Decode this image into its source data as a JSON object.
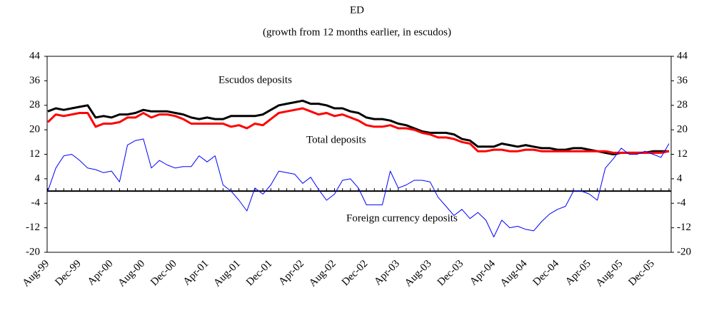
{
  "chart_data": {
    "type": "line",
    "title": "ED",
    "subtitle": "(growth from 12 months earlier, in escudos)",
    "categories": [
      "Aug-99",
      null,
      null,
      null,
      "Dec-99",
      null,
      null,
      null,
      "Apr-00",
      null,
      null,
      null,
      "Aug-00",
      null,
      null,
      null,
      "Dec-00",
      null,
      null,
      null,
      "Apr-01",
      null,
      null,
      null,
      "Aug-01",
      null,
      null,
      null,
      "Dec-01",
      null,
      null,
      null,
      "Apr-02",
      null,
      null,
      null,
      "Aug-02",
      null,
      null,
      null,
      "Dec-02",
      null,
      null,
      null,
      "Apr-03",
      null,
      null,
      null,
      "Aug-03",
      null,
      null,
      null,
      "Dec-03",
      null,
      null,
      null,
      "Apr-04",
      null,
      null,
      null,
      "Aug-04",
      null,
      null,
      null,
      "Dec-04",
      null,
      null,
      null,
      "Apr-05",
      null,
      null,
      null,
      "Aug-05",
      null,
      null,
      null,
      "Dec-05",
      null,
      null
    ],
    "series": [
      {
        "name": "Escudos deposits",
        "color": "#000000",
        "values": [
          26,
          27,
          26.5,
          27,
          27.5,
          28,
          24,
          24.5,
          24,
          25,
          25,
          25.5,
          26.5,
          26,
          26,
          26,
          25.5,
          25,
          24,
          23.5,
          24,
          23.5,
          23.5,
          24.5,
          24.5,
          24.5,
          24.5,
          25,
          26.5,
          28,
          28.5,
          29,
          29.5,
          28.5,
          28.5,
          28,
          27,
          27,
          26,
          25.5,
          24,
          23.5,
          23.5,
          23,
          22,
          21.5,
          20.5,
          19.5,
          19,
          19,
          19,
          18.5,
          17,
          16.5,
          14.5,
          14.5,
          14.5,
          15.5,
          15,
          14.5,
          15,
          14.5,
          14,
          14,
          13.5,
          13.5,
          14,
          14,
          13.5,
          13,
          12.5,
          12,
          12.5,
          12.5,
          12.5,
          12.5,
          13,
          13,
          13
        ]
      },
      {
        "name": "Total deposits",
        "color": "#ff0000",
        "values": [
          22.5,
          25,
          24.5,
          25,
          25.5,
          25.5,
          21,
          22,
          22,
          22.5,
          24,
          24,
          25.5,
          24,
          25,
          25,
          24.5,
          23.5,
          22,
          22,
          22,
          22,
          22,
          21,
          21.5,
          20.5,
          22,
          21.5,
          23.5,
          25.5,
          26,
          26.5,
          27,
          26,
          25,
          25.5,
          24.5,
          25,
          24,
          23,
          21.5,
          21,
          21,
          21.5,
          20.5,
          20.5,
          20,
          19,
          18.5,
          17.5,
          17.5,
          17,
          16,
          15.5,
          13,
          13,
          13.5,
          13.5,
          13,
          13,
          13.5,
          13.5,
          13,
          13,
          13,
          13,
          13,
          13,
          13,
          13,
          13,
          12.5,
          12.5,
          12.5,
          12.5,
          12.5,
          12.5,
          12.5,
          13
        ]
      },
      {
        "name": "Foreign currency deposits",
        "color": "#0000ff",
        "values": [
          0,
          7.5,
          11.5,
          12,
          10,
          7.5,
          7,
          6,
          6.5,
          3,
          15,
          16.5,
          17,
          7.5,
          10,
          8.5,
          7.5,
          8,
          8,
          11.5,
          9.5,
          11.5,
          2,
          0,
          -3,
          -6.5,
          1,
          -1,
          2,
          6.5,
          6,
          5.5,
          2.5,
          4.5,
          0.5,
          -3,
          -1,
          3.5,
          4,
          1,
          -4.5,
          -4.5,
          -4.5,
          6.5,
          1,
          2,
          3.5,
          3.5,
          3,
          -2,
          -5,
          -8,
          -6,
          -9,
          -7,
          -9.5,
          -15,
          -9.5,
          -12,
          -11.5,
          -12.5,
          -13,
          -10,
          -7.5,
          -6,
          -5,
          0,
          0,
          -1,
          -3,
          7.5,
          10.5,
          14,
          12,
          12,
          13,
          12,
          11,
          15.5
        ]
      }
    ],
    "ylim": [
      -20,
      44
    ],
    "yticks": [
      -20,
      -12,
      -4,
      4,
      12,
      20,
      28,
      36,
      44
    ],
    "y2lim": [
      -20,
      44
    ],
    "y2ticks": [
      -20,
      -12,
      -4,
      4,
      12,
      20,
      28,
      36,
      44
    ]
  }
}
